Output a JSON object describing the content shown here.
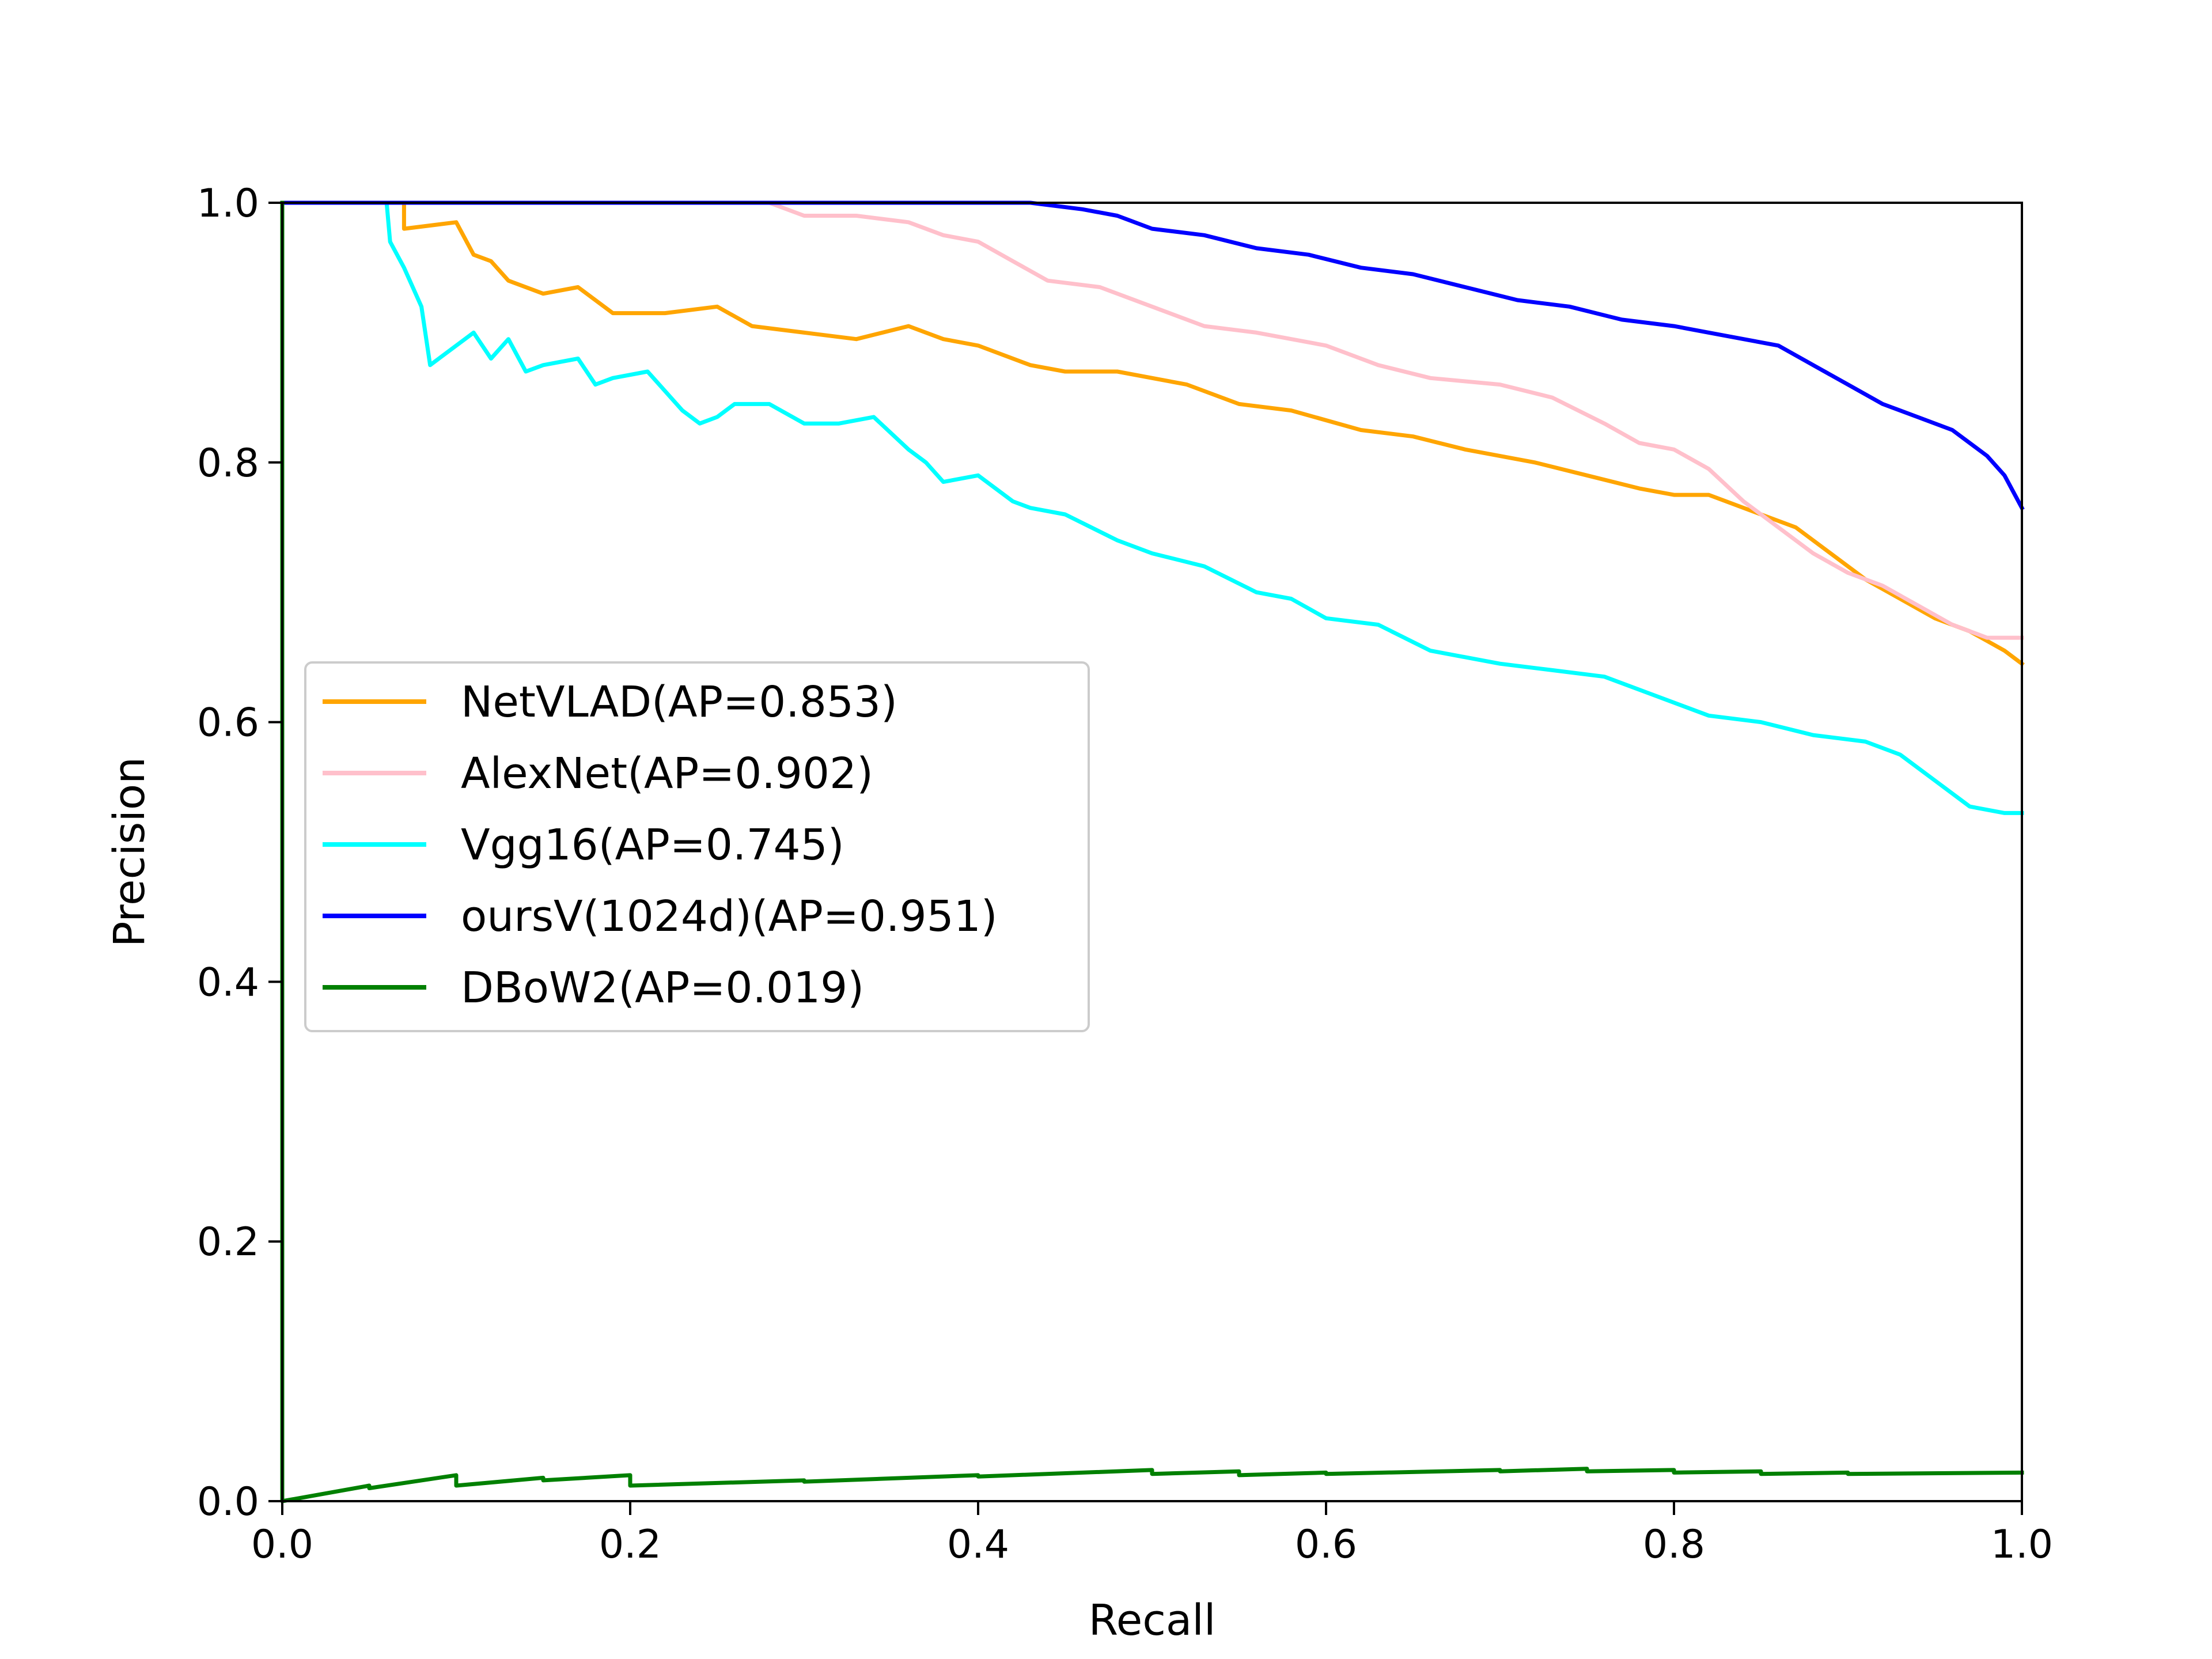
{
  "chart_data": {
    "type": "line",
    "title": "",
    "xlabel": "Recall",
    "ylabel": "Precision",
    "xlim": [
      0.0,
      1.0
    ],
    "ylim": [
      0.0,
      1.0
    ],
    "xticks": [
      "0.0",
      "0.2",
      "0.4",
      "0.6",
      "0.8",
      "1.0"
    ],
    "yticks": [
      "0.0",
      "0.2",
      "0.4",
      "0.6",
      "0.8",
      "1.0"
    ],
    "grid": false,
    "legend_position": "center-left",
    "series": [
      {
        "name": "NetVLAD(AP=0.853)",
        "color": "#FFA500",
        "x": [
          0.0,
          0.07,
          0.07,
          0.1,
          0.11,
          0.12,
          0.13,
          0.15,
          0.17,
          0.19,
          0.22,
          0.25,
          0.27,
          0.3,
          0.33,
          0.36,
          0.38,
          0.4,
          0.43,
          0.45,
          0.48,
          0.52,
          0.55,
          0.58,
          0.62,
          0.65,
          0.68,
          0.72,
          0.75,
          0.78,
          0.8,
          0.82,
          0.85,
          0.87,
          0.89,
          0.91,
          0.93,
          0.95,
          0.97,
          0.99,
          1.0
        ],
        "y": [
          1.0,
          1.0,
          0.98,
          0.985,
          0.96,
          0.955,
          0.94,
          0.93,
          0.935,
          0.915,
          0.915,
          0.92,
          0.905,
          0.9,
          0.895,
          0.905,
          0.895,
          0.89,
          0.875,
          0.87,
          0.87,
          0.86,
          0.845,
          0.84,
          0.825,
          0.82,
          0.81,
          0.8,
          0.79,
          0.78,
          0.775,
          0.775,
          0.76,
          0.75,
          0.73,
          0.71,
          0.695,
          0.68,
          0.67,
          0.655,
          0.645
        ]
      },
      {
        "name": "AlexNet(AP=0.902)",
        "color": "#FFC0CB",
        "x": [
          0.0,
          0.28,
          0.3,
          0.33,
          0.36,
          0.38,
          0.4,
          0.42,
          0.44,
          0.47,
          0.5,
          0.53,
          0.56,
          0.6,
          0.63,
          0.66,
          0.7,
          0.73,
          0.76,
          0.78,
          0.8,
          0.82,
          0.84,
          0.86,
          0.88,
          0.9,
          0.92,
          0.94,
          0.96,
          0.98,
          1.0
        ],
        "y": [
          1.0,
          1.0,
          0.99,
          0.99,
          0.985,
          0.975,
          0.97,
          0.955,
          0.94,
          0.935,
          0.92,
          0.905,
          0.9,
          0.89,
          0.875,
          0.865,
          0.86,
          0.85,
          0.83,
          0.815,
          0.81,
          0.795,
          0.77,
          0.75,
          0.73,
          0.715,
          0.705,
          0.69,
          0.675,
          0.665,
          0.665
        ]
      },
      {
        "name": "Vgg16(AP=0.745)",
        "color": "#00FFFF",
        "x": [
          0.0,
          0.06,
          0.062,
          0.07,
          0.08,
          0.085,
          0.09,
          0.11,
          0.12,
          0.13,
          0.14,
          0.15,
          0.17,
          0.18,
          0.19,
          0.21,
          0.23,
          0.24,
          0.25,
          0.26,
          0.28,
          0.3,
          0.32,
          0.34,
          0.36,
          0.37,
          0.38,
          0.4,
          0.42,
          0.43,
          0.45,
          0.48,
          0.5,
          0.53,
          0.56,
          0.58,
          0.6,
          0.63,
          0.66,
          0.7,
          0.73,
          0.76,
          0.79,
          0.82,
          0.85,
          0.88,
          0.91,
          0.93,
          0.95,
          0.97,
          0.99,
          1.0
        ],
        "y": [
          1.0,
          1.0,
          0.97,
          0.95,
          0.92,
          0.875,
          0.88,
          0.9,
          0.88,
          0.895,
          0.87,
          0.875,
          0.88,
          0.86,
          0.865,
          0.87,
          0.84,
          0.83,
          0.835,
          0.845,
          0.845,
          0.83,
          0.83,
          0.835,
          0.81,
          0.8,
          0.785,
          0.79,
          0.77,
          0.765,
          0.76,
          0.74,
          0.73,
          0.72,
          0.7,
          0.695,
          0.68,
          0.675,
          0.655,
          0.645,
          0.64,
          0.635,
          0.62,
          0.605,
          0.6,
          0.59,
          0.585,
          0.575,
          0.555,
          0.535,
          0.53,
          0.53
        ]
      },
      {
        "name": "oursV(1024d)(AP=0.951)",
        "color": "#0000FF",
        "x": [
          0.0,
          0.43,
          0.46,
          0.48,
          0.5,
          0.53,
          0.56,
          0.59,
          0.62,
          0.65,
          0.68,
          0.71,
          0.74,
          0.77,
          0.8,
          0.82,
          0.84,
          0.86,
          0.88,
          0.9,
          0.92,
          0.94,
          0.96,
          0.98,
          0.99,
          1.0
        ],
        "y": [
          1.0,
          1.0,
          0.995,
          0.99,
          0.98,
          0.975,
          0.965,
          0.96,
          0.95,
          0.945,
          0.935,
          0.925,
          0.92,
          0.91,
          0.905,
          0.9,
          0.895,
          0.89,
          0.875,
          0.86,
          0.845,
          0.835,
          0.825,
          0.805,
          0.79,
          0.765
        ]
      },
      {
        "name": "DBoW2(AP=0.019)",
        "color": "#008000",
        "x": [
          0.0,
          0.0,
          0.05,
          0.05,
          0.1,
          0.1,
          0.15,
          0.15,
          0.2,
          0.2,
          0.3,
          0.3,
          0.4,
          0.4,
          0.5,
          0.5,
          0.55,
          0.55,
          0.6,
          0.6,
          0.7,
          0.7,
          0.75,
          0.75,
          0.8,
          0.8,
          0.85,
          0.85,
          0.9,
          0.9,
          1.0
        ],
        "y": [
          1.0,
          0.0,
          0.012,
          0.01,
          0.02,
          0.012,
          0.018,
          0.016,
          0.02,
          0.012,
          0.016,
          0.015,
          0.02,
          0.019,
          0.024,
          0.021,
          0.023,
          0.02,
          0.022,
          0.021,
          0.024,
          0.023,
          0.025,
          0.023,
          0.024,
          0.022,
          0.023,
          0.021,
          0.022,
          0.021,
          0.022
        ]
      }
    ]
  }
}
